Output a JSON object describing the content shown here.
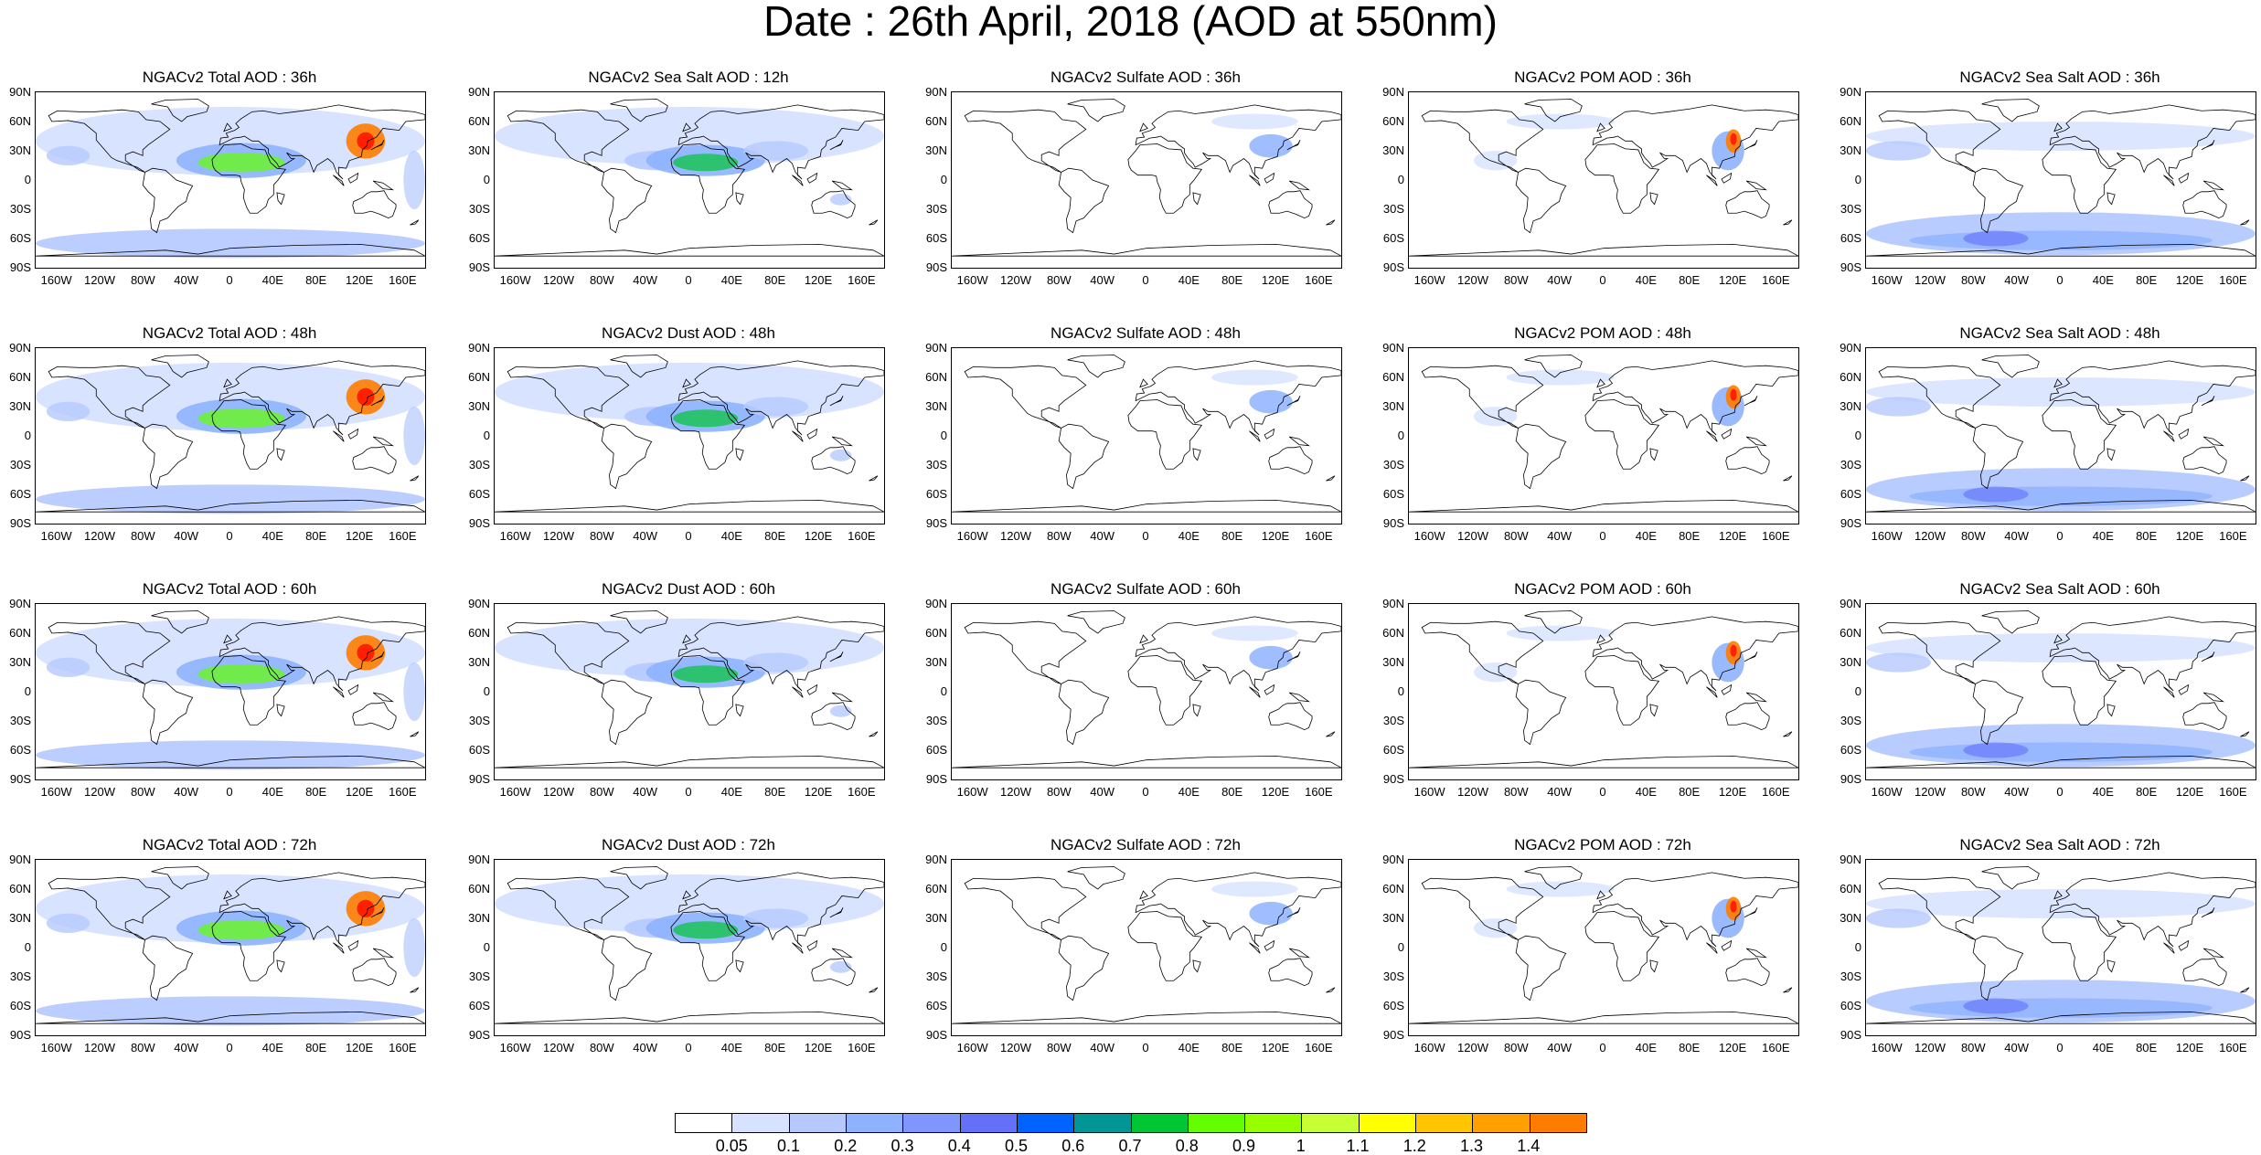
{
  "title": "Date : 26th April, 2018 (AOD at 550nm)",
  "lat_labels": [
    "90N",
    "60N",
    "30N",
    "0",
    "30S",
    "60S",
    "90S"
  ],
  "lon_labels": [
    "160W",
    "120W",
    "80W",
    "40W",
    "0",
    "40E",
    "80E",
    "120E",
    "160E"
  ],
  "panels": [
    [
      "NGACv2 Total AOD : 36h",
      "NGACv2 Sea Salt  AOD : 12h",
      "NGACv2 Sulfate AOD : 36h",
      "NGACv2 POM AOD : 36h",
      "NGACv2 Sea Salt AOD : 36h"
    ],
    [
      "NGACv2 Total AOD : 48h",
      "NGACv2 Dust AOD : 48h",
      "NGACv2 Sulfate AOD : 48h",
      "NGACv2 POM AOD : 48h",
      "NGACv2 Sea Salt AOD : 48h"
    ],
    [
      "NGACv2 Total AOD : 60h",
      "NGACv2 Dust AOD : 60h",
      "NGACv2 Sulfate AOD : 60h",
      "NGACv2 POM AOD : 60h",
      "NGACv2 Sea Salt AOD : 60h"
    ],
    [
      "NGACv2 Total AOD : 72h",
      "NGACv2 Dust AOD : 72h",
      "NGACv2 Sulfate AOD : 72h",
      "NGACv2 POM AOD : 72h",
      "NGACv2 Sea Salt AOD : 72h"
    ]
  ],
  "colorbar": {
    "labels": [
      "0.05",
      "0.1",
      "0.2",
      "0.3",
      "0.4",
      "0.5",
      "0.6",
      "0.7",
      "0.8",
      "0.9",
      "1",
      "1.1",
      "1.2",
      "1.3",
      "1.4"
    ],
    "colors": [
      "#ffffff",
      "#d6e2ff",
      "#b5c9ff",
      "#8eb2ff",
      "#7f96ff",
      "#6370f8",
      "#0063ff",
      "#009696",
      "#00c633",
      "#63ff00",
      "#96ff00",
      "#c6ff33",
      "#ffff00",
      "#ffc600",
      "#ffa000",
      "#ff7c00",
      "#ff1900"
    ]
  }
}
